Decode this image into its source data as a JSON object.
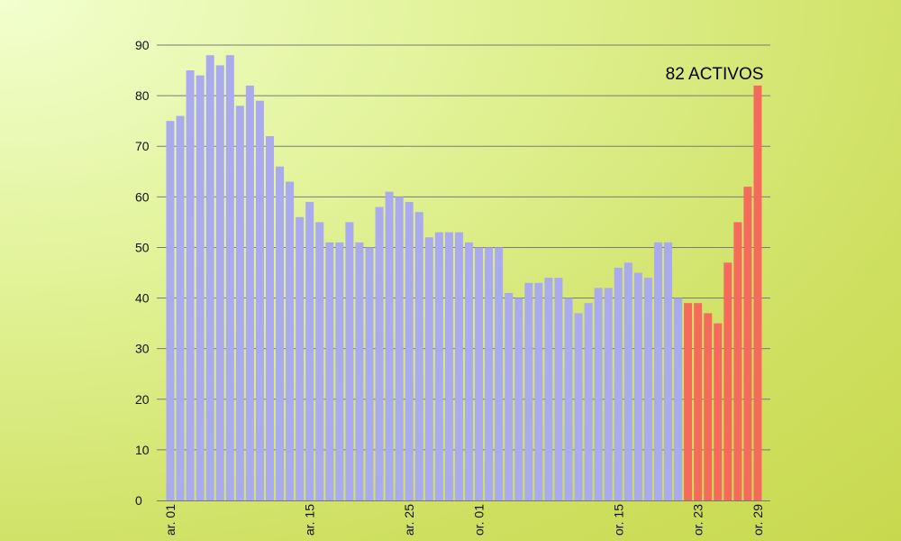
{
  "chart_data": {
    "type": "bar",
    "title": "",
    "xlabel": "",
    "ylabel": "",
    "ylim": [
      0,
      90
    ],
    "yticks": [
      0,
      10,
      20,
      30,
      40,
      50,
      60,
      70,
      80,
      90
    ],
    "grid": "horizontal",
    "legend": "none",
    "annotation": "82 ACTIVOS",
    "colors": {
      "normal": "#aaaaee",
      "highlight": "#f56a5a",
      "grid": "#7a7a7a"
    },
    "x_tick_labels": [
      {
        "index": 0,
        "label": "ar. 01"
      },
      {
        "index": 14,
        "label": "ar. 15"
      },
      {
        "index": 24,
        "label": "ar. 25"
      },
      {
        "index": 31,
        "label": "or. 01"
      },
      {
        "index": 45,
        "label": "or. 15"
      },
      {
        "index": 53,
        "label": "or. 23"
      },
      {
        "index": 59,
        "label": "or. 29"
      }
    ],
    "values": [
      75,
      76,
      85,
      84,
      88,
      86,
      88,
      78,
      82,
      79,
      72,
      66,
      63,
      56,
      59,
      55,
      51,
      51,
      55,
      51,
      50,
      58,
      61,
      60,
      59,
      57,
      52,
      53,
      53,
      53,
      51,
      50,
      50,
      50,
      41,
      40,
      43,
      43,
      44,
      44,
      40,
      37,
      39,
      42,
      42,
      46,
      47,
      45,
      44,
      51,
      51,
      40,
      39,
      39,
      37,
      35,
      47,
      55,
      62,
      82
    ],
    "highlighted": [
      false,
      false,
      false,
      false,
      false,
      false,
      false,
      false,
      false,
      false,
      false,
      false,
      false,
      false,
      false,
      false,
      false,
      false,
      false,
      false,
      false,
      false,
      false,
      false,
      false,
      false,
      false,
      false,
      false,
      false,
      false,
      false,
      false,
      false,
      false,
      false,
      false,
      false,
      false,
      false,
      false,
      false,
      false,
      false,
      false,
      false,
      false,
      false,
      false,
      false,
      false,
      false,
      true,
      true,
      true,
      true,
      true,
      true,
      true,
      true
    ]
  }
}
